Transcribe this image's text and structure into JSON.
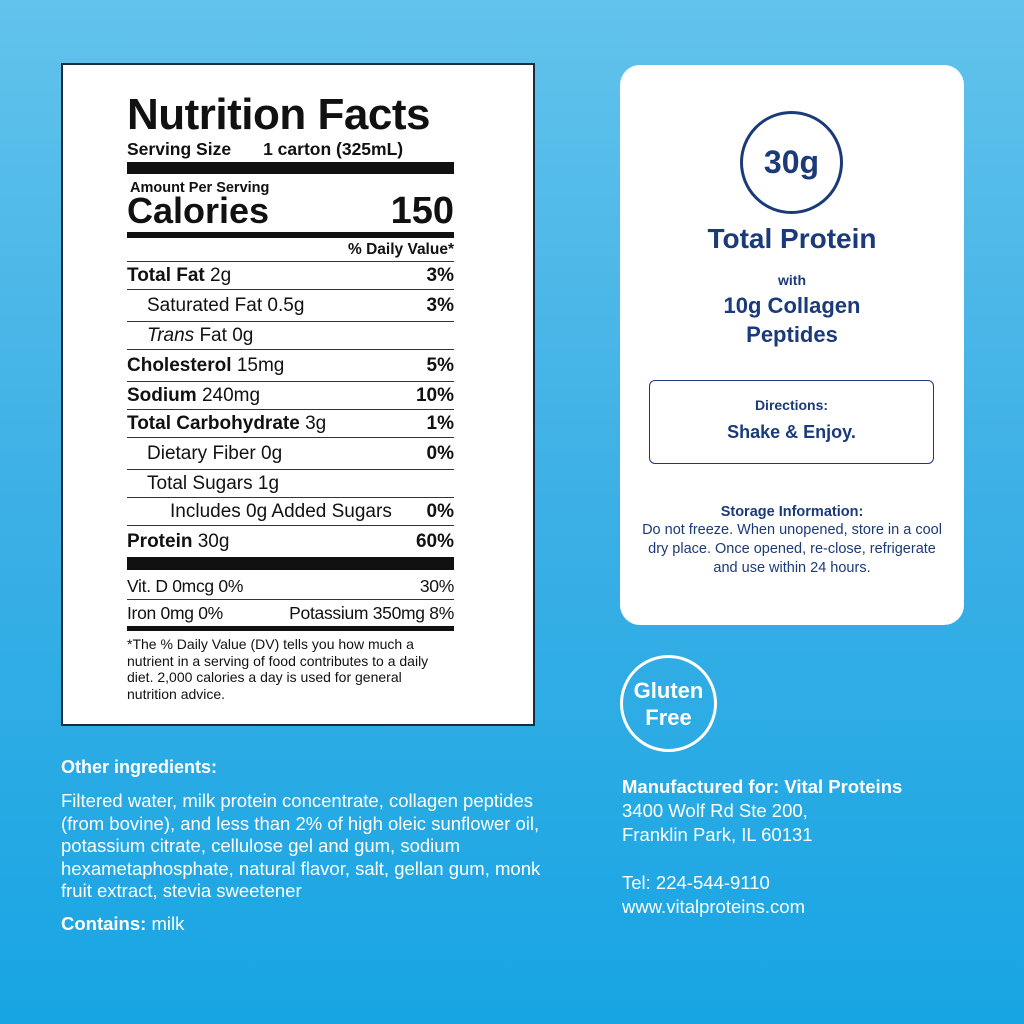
{
  "nutrition": {
    "title": "Nutrition Facts",
    "serving_label": "Serving Size",
    "serving_value": "1 carton (325mL)",
    "amount_per_serving": "Amount Per Serving",
    "calories_label": "Calories",
    "calories_value": "150",
    "daily_value_header": "% Daily Value*",
    "rows": [
      {
        "name": "Total Fat",
        "amount": "2g",
        "pct": "3%"
      },
      {
        "name": "Saturated Fat",
        "amount": "0.5g",
        "pct": "3%"
      },
      {
        "name_italic": "Trans",
        "name": "Fat",
        "amount": "0g",
        "pct": ""
      },
      {
        "name": "Cholesterol",
        "amount": "15mg",
        "pct": "5%"
      },
      {
        "name": "Sodium",
        "amount": "240mg",
        "pct": "10%"
      },
      {
        "name": "Total Carbohydrate",
        "amount": "3g",
        "pct": "1%"
      },
      {
        "name": "Dietary Fiber",
        "amount": "0g",
        "pct": "0%"
      },
      {
        "name": "Total Sugars",
        "amount": "1g",
        "pct": ""
      },
      {
        "name": "Includes 0g Added Sugars",
        "amount": "",
        "pct": "0%"
      },
      {
        "name": "Protein",
        "amount": "30g",
        "pct": "60%"
      }
    ],
    "vitd": "Vit. D 0mcg 0%",
    "vitd_pct": "30%",
    "iron": "Iron 0mg 0%",
    "potassium": "Potassium 350mg 8%",
    "footnote": "*The % Daily Value (DV) tells you how much a nutrient in a serving of food contributes to a daily diet. 2,000 calories a day is used for general nutrition advice."
  },
  "card": {
    "protein_badge": "30g",
    "total_protein": "Total Protein",
    "with": "with",
    "collagen_line1": "10g Collagen",
    "collagen_line2": "Peptides",
    "directions_label": "Directions:",
    "directions_value": "Shake & Enjoy.",
    "storage_title": "Storage Information:",
    "storage_body": "Do not freeze. When unopened, store in a cool dry place. Once opened, re-close, refrigerate and use within 24 hours."
  },
  "gluten_free": {
    "line1": "Gluten",
    "line2": "Free"
  },
  "ingredients": {
    "title": "Other ingredients:",
    "body": "Filtered water, milk protein concentrate, collagen peptides (from bovine), and less than 2% of high oleic sunflower oil, potassium citrate, cellulose gel and gum, sodium hexametaphosphate, natural flavor, salt, gellan gum, monk fruit extract, stevia sweetener",
    "contains_label": "Contains:",
    "contains_value": "milk"
  },
  "manufacturer": {
    "label": "Manufactured for: Vital Proteins",
    "address1": "3400 Wolf Rd Ste 200,",
    "address2": "Franklin Park, IL 60131",
    "tel": "Tel: 224-544-9110",
    "web": "www.vitalproteins.com"
  },
  "colors": {
    "background": "#3fb1e6",
    "brand_navy": "#1b3a7a"
  }
}
